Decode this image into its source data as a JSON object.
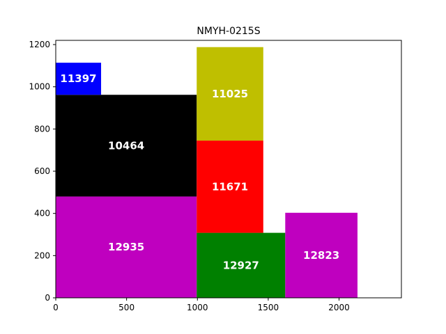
{
  "chart_data": {
    "type": "treemap",
    "title": "NMYH-0215S",
    "xlabel": "",
    "ylabel": "",
    "xlim": [
      0,
      2440
    ],
    "ylim": [
      0,
      1220
    ],
    "x_ticks": [
      0,
      500,
      1000,
      1500,
      2000
    ],
    "y_ticks": [
      0,
      200,
      400,
      600,
      800,
      1000,
      1200
    ],
    "grid": false,
    "rects": [
      {
        "label": "12935",
        "x": 0,
        "y": 0,
        "width": 995,
        "height": 480,
        "color": "#bf00bf"
      },
      {
        "label": "10464",
        "x": 0,
        "y": 480,
        "width": 995,
        "height": 482,
        "color": "#000000"
      },
      {
        "label": "11397",
        "x": 0,
        "y": 962,
        "width": 320,
        "height": 152,
        "color": "#0000ff"
      },
      {
        "label": "12927",
        "x": 995,
        "y": 0,
        "width": 625,
        "height": 308,
        "color": "#008000"
      },
      {
        "label": "11671",
        "x": 995,
        "y": 308,
        "width": 470,
        "height": 437,
        "color": "#ff0000"
      },
      {
        "label": "11025",
        "x": 995,
        "y": 745,
        "width": 470,
        "height": 443,
        "color": "#bfbf00"
      },
      {
        "label": "12823",
        "x": 1620,
        "y": 0,
        "width": 510,
        "height": 403,
        "color": "#bf00bf"
      }
    ]
  }
}
